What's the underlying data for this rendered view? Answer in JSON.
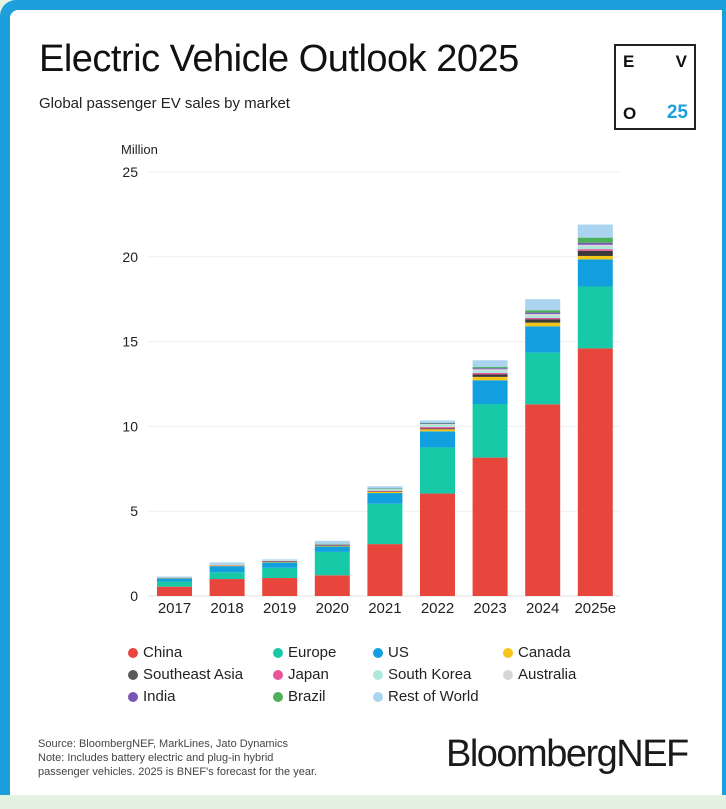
{
  "header": {
    "title": "Electric Vehicle Outlook 2025",
    "subtitle": "Global passenger EV sales by market",
    "badge": {
      "e": "E",
      "v": "V",
      "o": "O",
      "year": "25"
    }
  },
  "chart_data": {
    "type": "bar",
    "stacked": true,
    "title": "Electric Vehicle Outlook 2025",
    "subtitle": "Global passenger EV sales by market",
    "xlabel": "",
    "ylabel": "Million",
    "ylim": [
      0,
      25
    ],
    "yticks": [
      0,
      5,
      10,
      15,
      20,
      25
    ],
    "grid": true,
    "legend_position": "bottom",
    "categories": [
      "2017",
      "2018",
      "2019",
      "2020",
      "2021",
      "2022",
      "2023",
      "2024",
      "2025e"
    ],
    "series": [
      {
        "name": "China",
        "color": "#e8453c",
        "values": [
          0.55,
          1.0,
          1.06,
          1.22,
          3.06,
          6.04,
          8.16,
          11.3,
          14.6
        ]
      },
      {
        "name": "Europe",
        "color": "#17c9a7",
        "values": [
          0.3,
          0.4,
          0.6,
          1.38,
          2.38,
          2.72,
          3.16,
          3.05,
          3.65
        ]
      },
      {
        "name": "US",
        "color": "#129fe0",
        "values": [
          0.2,
          0.36,
          0.32,
          0.32,
          0.63,
          0.95,
          1.4,
          1.55,
          1.6
        ]
      },
      {
        "name": "Canada",
        "color": "#f5c518",
        "values": [
          0.02,
          0.04,
          0.05,
          0.05,
          0.08,
          0.12,
          0.2,
          0.22,
          0.2
        ]
      },
      {
        "name": "Southeast Asia",
        "color": "#3a3a3a",
        "values": [
          0.0,
          0.0,
          0.01,
          0.01,
          0.02,
          0.05,
          0.15,
          0.2,
          0.3
        ]
      },
      {
        "name": "Japan",
        "color": "#e8559a",
        "values": [
          0.02,
          0.02,
          0.02,
          0.02,
          0.04,
          0.08,
          0.08,
          0.08,
          0.1
        ]
      },
      {
        "name": "South Korea",
        "color": "#aee8dc",
        "values": [
          0.01,
          0.03,
          0.04,
          0.05,
          0.1,
          0.14,
          0.14,
          0.14,
          0.16
        ]
      },
      {
        "name": "Australia",
        "color": "#d6d6d6",
        "values": [
          0.0,
          0.0,
          0.01,
          0.01,
          0.02,
          0.04,
          0.08,
          0.09,
          0.1
        ]
      },
      {
        "name": "India",
        "color": "#7a55b5",
        "values": [
          0.0,
          0.0,
          0.0,
          0.01,
          0.01,
          0.03,
          0.06,
          0.08,
          0.12
        ]
      },
      {
        "name": "Brazil",
        "color": "#4caf5a",
        "values": [
          0.0,
          0.0,
          0.0,
          0.01,
          0.01,
          0.03,
          0.07,
          0.14,
          0.3
        ]
      },
      {
        "name": "Rest of World",
        "color": "#aad4ef",
        "values": [
          0.05,
          0.13,
          0.05,
          0.17,
          0.12,
          0.15,
          0.4,
          0.65,
          0.77
        ]
      }
    ]
  },
  "legend": [
    {
      "label": "China",
      "color": "#e8453c"
    },
    {
      "label": "Europe",
      "color": "#17c9a7"
    },
    {
      "label": "US",
      "color": "#129fe0"
    },
    {
      "label": "Canada",
      "color": "#f5c518"
    },
    {
      "label": "Southeast Asia",
      "color": "#5a5a5a"
    },
    {
      "label": "Japan",
      "color": "#e8559a"
    },
    {
      "label": "South Korea",
      "color": "#aee8dc"
    },
    {
      "label": "Australia",
      "color": "#d6d6d6"
    },
    {
      "label": "India",
      "color": "#7a55b5"
    },
    {
      "label": "Brazil",
      "color": "#4caf5a"
    },
    {
      "label": "Rest of World",
      "color": "#aad4ef"
    }
  ],
  "footer": {
    "source": "Source: BloombergNEF, MarkLines, Jato Dynamics",
    "note_line1": "Note: Includes battery electric and plug-in hybrid",
    "note_line2": "passenger vehicles. 2025 is BNEF's forecast for the year.",
    "logo": "BloombergNEF"
  },
  "colors": {
    "frame": "#1d9fdc",
    "accent": "#1d9fdc",
    "page_background": "#e4f2e1"
  }
}
